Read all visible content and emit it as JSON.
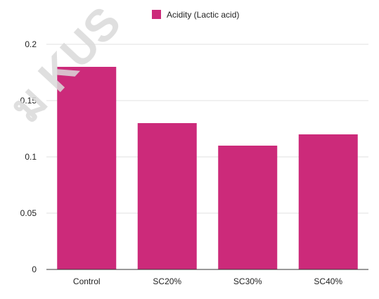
{
  "chart_data": {
    "type": "bar",
    "categories": [
      "Control",
      "SC20%",
      "SC30%",
      "SC40%"
    ],
    "series": [
      {
        "name": "Acidity (Lactic acid)",
        "values": [
          0.18,
          0.13,
          0.11,
          0.12
        ]
      }
    ],
    "ylim": [
      0,
      0.2
    ],
    "yticks": [
      "0",
      "0.05",
      "0.1",
      "0.15",
      "0.2"
    ],
    "grid": true,
    "legend_position": "top-center",
    "colors": {
      "bar": "#cc2a7a"
    }
  },
  "watermark": {
    "text": "ม KUS",
    "color": "#d9d9d9"
  }
}
